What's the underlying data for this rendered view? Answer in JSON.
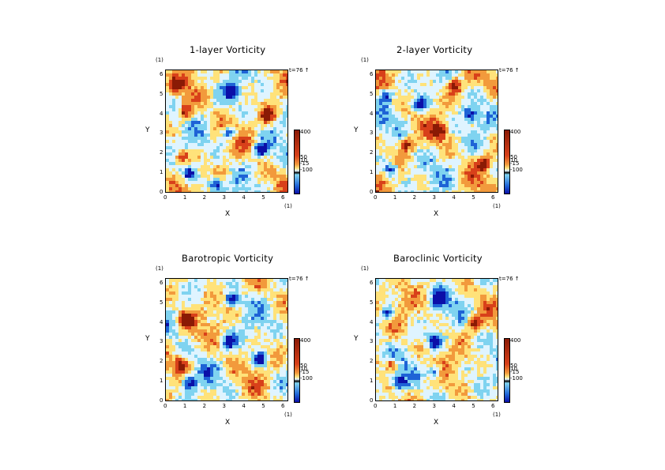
{
  "colors": {
    "dark_blue": "#0b0fa8",
    "blue": "#1e63d6",
    "light_blue": "#7fd3f0",
    "pale": "#dff4ff",
    "yellow": "#ffe27a",
    "orange": "#f29a3c",
    "red": "#d8401a",
    "dark_red": "#8a1a05"
  },
  "chart_data": [
    {
      "type": "heatmap",
      "title": "1-layer Vorticity",
      "xlabel": "X",
      "ylabel": "Y",
      "unit_x": "(1)",
      "unit_y": "(1)",
      "time_label": "t=76 ↑",
      "xlim": [
        0,
        6.28
      ],
      "ylim": [
        0,
        6.28
      ],
      "x_ticks": [
        "0",
        "1",
        "2",
        "3",
        "4",
        "5",
        "6"
      ],
      "y_ticks": [
        "0",
        "1",
        "2",
        "3",
        "4",
        "5",
        "6"
      ],
      "colorbar": {
        "labels": [
          "400",
          "50",
          "10",
          "-15",
          "-100"
        ],
        "range": [
          -150,
          400
        ]
      }
    },
    {
      "type": "heatmap",
      "title": "2-layer Vorticity",
      "xlabel": "X",
      "ylabel": "Y",
      "unit_x": "(1)",
      "unit_y": "(1)",
      "time_label": "t=76 ↑",
      "xlim": [
        0,
        6.28
      ],
      "ylim": [
        0,
        6.28
      ],
      "x_ticks": [
        "0",
        "1",
        "2",
        "3",
        "4",
        "5",
        "6"
      ],
      "y_ticks": [
        "0",
        "1",
        "2",
        "3",
        "4",
        "5",
        "6"
      ],
      "colorbar": {
        "labels": [
          "400",
          "50",
          "10",
          "-15",
          "-100"
        ],
        "range": [
          -150,
          400
        ]
      }
    },
    {
      "type": "heatmap",
      "title": "Barotropic Vorticity",
      "xlabel": "X",
      "ylabel": "Y",
      "unit_x": "(1)",
      "unit_y": "(1)",
      "time_label": "t=76 ↑",
      "xlim": [
        0,
        6.28
      ],
      "ylim": [
        0,
        6.28
      ],
      "x_ticks": [
        "0",
        "1",
        "2",
        "3",
        "4",
        "5",
        "6"
      ],
      "y_ticks": [
        "0",
        "1",
        "2",
        "3",
        "4",
        "5",
        "6"
      ],
      "colorbar": {
        "labels": [
          "400",
          "50",
          "10",
          "-15",
          "-100"
        ],
        "range": [
          -150,
          400
        ]
      }
    },
    {
      "type": "heatmap",
      "title": "Baroclinic Vorticity",
      "xlabel": "X",
      "ylabel": "Y",
      "unit_x": "(1)",
      "unit_y": "(1)",
      "time_label": "t=76 ↑",
      "xlim": [
        0,
        6.28
      ],
      "ylim": [
        0,
        6.28
      ],
      "x_ticks": [
        "0",
        "1",
        "2",
        "3",
        "4",
        "5",
        "6"
      ],
      "y_ticks": [
        "0",
        "1",
        "2",
        "3",
        "4",
        "5",
        "6"
      ],
      "colorbar": {
        "labels": [
          "400",
          "50",
          "10",
          "-15",
          "-100"
        ],
        "range": [
          -150,
          400
        ]
      }
    }
  ]
}
